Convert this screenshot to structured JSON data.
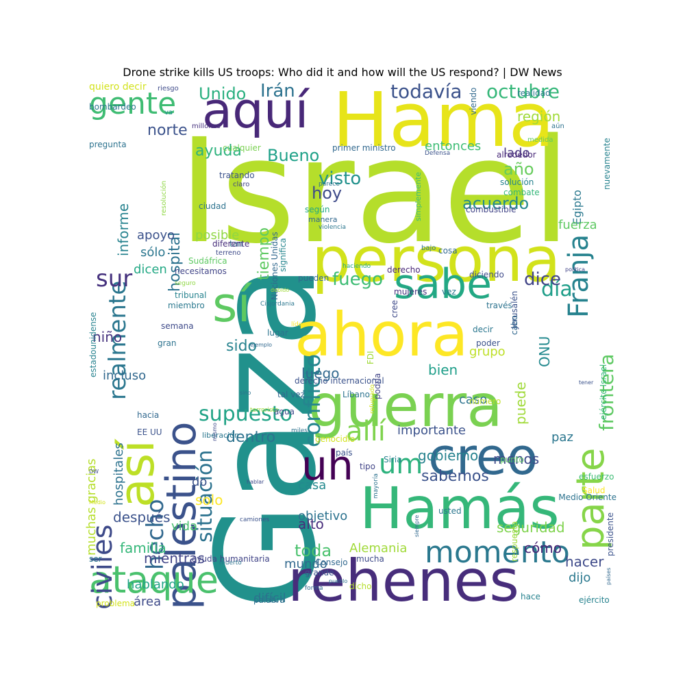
{
  "title": "Drone strike kills US troops: Who did it and how will the US respond? | DW News",
  "words": [
    {
      "t": "Israel",
      "c": "#b5de2b"
    },
    {
      "t": "Gaza",
      "c": "#21918c"
    },
    {
      "t": "Hama",
      "c": "#e7e419"
    },
    {
      "t": "persona",
      "c": "#d2e21b"
    },
    {
      "t": "ahora",
      "c": "#fde725"
    },
    {
      "t": "guerra",
      "c": "#7ad151"
    },
    {
      "t": "Hamás",
      "c": "#35b779"
    },
    {
      "t": "rehenes",
      "c": "#472d7b"
    },
    {
      "t": "creo",
      "c": "#31688e"
    },
    {
      "t": "aquí",
      "c": "#482878"
    },
    {
      "t": "sí",
      "c": "#5ec962"
    },
    {
      "t": "así",
      "c": "#bddf26"
    },
    {
      "t": "palestino",
      "c": "#3b528b"
    },
    {
      "t": "parte",
      "c": "#86d549"
    },
    {
      "t": "sabe",
      "c": "#22a884"
    },
    {
      "t": "ataque",
      "c": "#4ac16d"
    },
    {
      "t": "uh",
      "c": "#440154"
    },
    {
      "t": "momento",
      "c": "#2a788e"
    },
    {
      "t": "gente",
      "c": "#3fbc73"
    },
    {
      "t": "Franja",
      "c": "#26828e"
    },
    {
      "t": "civiles",
      "c": "#3e4a89"
    },
    {
      "t": "um",
      "c": "#2db27d"
    },
    {
      "t": "allí",
      "c": "#7fd34e"
    },
    {
      "t": "realmente",
      "c": "#2a768e"
    },
    {
      "t": "sur",
      "c": "#46327e"
    },
    {
      "t": "hecho",
      "c": "#31688e"
    },
    {
      "t": "conflicto",
      "c": "#25858e"
    },
    {
      "t": "situación",
      "c": "#2c728e"
    },
    {
      "t": "supuesto",
      "c": "#20a386"
    },
    {
      "t": "frontera",
      "c": "#5ec962"
    },
    {
      "t": "todavía",
      "c": "#3b528b"
    },
    {
      "t": "octubre",
      "c": "#35b779"
    },
    {
      "t": "Unido",
      "c": "#29af7f"
    },
    {
      "t": "Irán",
      "c": "#2c728e"
    },
    {
      "t": "día",
      "c": "#1f9e89"
    },
    {
      "t": "dice",
      "c": "#414487"
    },
    {
      "t": "fuego",
      "c": "#3dbc74"
    },
    {
      "t": "visto",
      "c": "#21918c"
    },
    {
      "t": "hoy",
      "c": "#3e4a89"
    },
    {
      "t": "año",
      "c": "#67cc5c"
    },
    {
      "t": "acuerdo",
      "c": "#23898e"
    },
    {
      "t": "Bueno",
      "c": "#1fa188"
    },
    {
      "t": "norte",
      "c": "#3b528b"
    },
    {
      "t": "ayuda",
      "c": "#2db27d"
    },
    {
      "t": "tiempo",
      "c": "#5ec962"
    },
    {
      "t": "hospital",
      "c": "#2c728e"
    },
    {
      "t": "informe",
      "c": "#26828e"
    },
    {
      "t": "región",
      "c": "#a0da39"
    },
    {
      "t": "entonces",
      "c": "#3dbc74"
    },
    {
      "t": "lado",
      "c": "#46337e"
    },
    {
      "t": "Egipto",
      "c": "#2a788e"
    },
    {
      "t": "fuerza",
      "c": "#5ec962"
    },
    {
      "t": "apoyo",
      "c": "#3b528b"
    },
    {
      "t": "sólo",
      "c": "#2a768e"
    },
    {
      "t": "dicen",
      "c": "#22a884"
    },
    {
      "t": "posible",
      "c": "#8fd744"
    },
    {
      "t": "sido",
      "c": "#26828e"
    },
    {
      "t": "luego",
      "c": "#31688e"
    },
    {
      "t": "alto",
      "c": "#472d7b"
    },
    {
      "t": "toda",
      "c": "#4ac16d"
    },
    {
      "t": "solo",
      "c": "#fde725"
    },
    {
      "t": "sabemos",
      "c": "#3b528b"
    },
    {
      "t": "seguridad",
      "c": "#7fd34e"
    },
    {
      "t": "cómo",
      "c": "#482475"
    },
    {
      "t": "hacer",
      "c": "#3e4a89"
    },
    {
      "t": "dijo",
      "c": "#2a788e"
    },
    {
      "t": "ONU",
      "c": "#23898e"
    },
    {
      "t": "puede",
      "c": "#a0da39"
    },
    {
      "t": "grupo",
      "c": "#bddf26"
    },
    {
      "t": "bien",
      "c": "#1f9e89"
    },
    {
      "t": "importante",
      "c": "#3b528b"
    },
    {
      "t": "dentro",
      "c": "#2c728e"
    },
    {
      "t": "gobierno",
      "c": "#26828e"
    },
    {
      "t": "menos",
      "c": "#3e4a89"
    },
    {
      "t": "paz",
      "c": "#2a768e"
    },
    {
      "t": "caso",
      "c": "#2c728e"
    },
    {
      "t": "niño",
      "c": "#46327e"
    },
    {
      "t": "incluso",
      "c": "#31688e"
    },
    {
      "t": "después",
      "c": "#3b528b"
    },
    {
      "t": "familia",
      "c": "#35b779"
    },
    {
      "t": "hablando",
      "c": "#20a386"
    },
    {
      "t": "mientras",
      "c": "#414487"
    },
    {
      "t": "vida",
      "c": "#4ac16d"
    },
    {
      "t": "objetivo",
      "c": "#2c728e"
    },
    {
      "t": "mundo",
      "c": "#31688e"
    },
    {
      "t": "Alemania",
      "c": "#a0da39"
    },
    {
      "t": "difícil",
      "c": "#2c728e"
    },
    {
      "t": "área",
      "c": "#3e4a89"
    },
    {
      "t": "hospitales",
      "c": "#2c728e"
    },
    {
      "t": "muchas gracias",
      "c": "#b5de2b"
    },
    {
      "t": "casa",
      "c": "#23898e"
    },
    {
      "t": "do",
      "c": "#3b528b"
    },
    {
      "t": "estadounidense",
      "c": "#26828e"
    },
    {
      "t": "quiero decir",
      "c": "#d2e21b"
    },
    {
      "t": "riesgo",
      "c": "#3e4a89"
    },
    {
      "t": "bombardeo",
      "c": "#2a768e"
    },
    {
      "t": "va",
      "c": "#21918c"
    },
    {
      "t": "millones",
      "c": "#46327e"
    },
    {
      "t": "pregunta",
      "c": "#2c728e"
    },
    {
      "t": "cualquier",
      "c": "#7ad151"
    },
    {
      "t": "primer ministro",
      "c": "#31688e"
    },
    {
      "t": "Defensa",
      "c": "#3b528b"
    },
    {
      "t": "alrededor",
      "c": "#482878"
    },
    {
      "t": "solución",
      "c": "#26828e"
    },
    {
      "t": "combate",
      "c": "#35b779"
    },
    {
      "t": "realidad",
      "c": "#2a788e"
    },
    {
      "t": "medida",
      "c": "#5ec962"
    },
    {
      "t": "aún",
      "c": "#2c728e"
    },
    {
      "t": "viendo",
      "c": "#31688e"
    },
    {
      "t": "tratando",
      "c": "#3b528b"
    },
    {
      "t": "claro",
      "c": "#414487"
    },
    {
      "t": "ciudad",
      "c": "#2c728e"
    },
    {
      "t": "resolución",
      "c": "#8fd744"
    },
    {
      "t": "según",
      "c": "#22a884"
    },
    {
      "t": "manera",
      "c": "#31688e"
    },
    {
      "t": "violencia",
      "c": "#2a768e"
    },
    {
      "t": "parece",
      "c": "#2c728e"
    },
    {
      "t": "simplemente",
      "c": "#3dbc74"
    },
    {
      "t": "combustible",
      "c": "#414487"
    },
    {
      "t": "nuevamente",
      "c": "#26828e"
    },
    {
      "t": "Naciones Unidas",
      "c": "#31688e"
    },
    {
      "t": "significa",
      "c": "#25858e"
    },
    {
      "t": "tan",
      "c": "#2c728e"
    },
    {
      "t": "diferente",
      "c": "#472d7b"
    },
    {
      "t": "terreno",
      "c": "#3e4a89"
    },
    {
      "t": "Sudáfrica",
      "c": "#5ec962"
    },
    {
      "t": "necesitamos",
      "c": "#414487"
    },
    {
      "t": "seguro",
      "c": "#8fd744"
    },
    {
      "t": "tribunal",
      "c": "#26828e"
    },
    {
      "t": "miembro",
      "c": "#2a788e"
    },
    {
      "t": "semana",
      "c": "#3e4a89"
    },
    {
      "t": "gran",
      "c": "#2c728e"
    },
    {
      "t": "Cisjordania",
      "c": "#2a768e"
    },
    {
      "t": "debido",
      "c": "#a0da39"
    },
    {
      "t": "cree",
      "c": "#3e4a89"
    },
    {
      "t": "haciendo",
      "c": "#22a884"
    },
    {
      "t": "pueden",
      "c": "#31688e"
    },
    {
      "t": "derecho",
      "c": "#482878"
    },
    {
      "t": "mujeres",
      "c": "#46327e"
    },
    {
      "t": "bajo",
      "c": "#2c728e"
    },
    {
      "t": "cosa",
      "c": "#31688e"
    },
    {
      "t": "vez",
      "c": "#2a768e"
    },
    {
      "t": "diciendo",
      "c": "#3e4a89"
    },
    {
      "t": "través",
      "c": "#2c728e"
    },
    {
      "t": "Jerusalén",
      "c": "#3b528b"
    },
    {
      "t": "política",
      "c": "#414487"
    },
    {
      "t": "decir",
      "c": "#2a768e"
    },
    {
      "t": "poder",
      "c": "#3b528b"
    },
    {
      "t": "cabo",
      "c": "#31688e"
    },
    {
      "t": "ejército Israel",
      "c": "#35b779"
    },
    {
      "t": "líderes",
      "c": "#fde725"
    },
    {
      "t": "lugar",
      "c": "#2c728e"
    },
    {
      "t": "ejemplo",
      "c": "#31688e"
    },
    {
      "t": "FDI",
      "c": "#a0da39"
    },
    {
      "t": "derecho internacional",
      "c": "#3b528b"
    },
    {
      "t": "podría",
      "c": "#414487"
    },
    {
      "t": "tal vez",
      "c": "#31688e"
    },
    {
      "t": "refugiado",
      "c": "#d2e21b"
    },
    {
      "t": "terrorista",
      "c": "#a0da39"
    },
    {
      "t": "sino",
      "c": "#2c728e"
    },
    {
      "t": "agua",
      "c": "#3e4a89"
    },
    {
      "t": "Líbano",
      "c": "#2c728e"
    },
    {
      "t": "número",
      "c": "#bddf26"
    },
    {
      "t": "hacia",
      "c": "#31688e"
    },
    {
      "t": "EE UU",
      "c": "#3b528b"
    },
    {
      "t": "liberación",
      "c": "#2a768e"
    },
    {
      "t": "mismo",
      "c": "#3e4a89"
    },
    {
      "t": "miles",
      "c": "#2c728e"
    },
    {
      "t": "genocidio",
      "c": "#d2e21b"
    },
    {
      "t": "país",
      "c": "#3b528b"
    },
    {
      "t": "tipo",
      "c": "#414487"
    },
    {
      "t": "mayoría",
      "c": "#2c728e"
    },
    {
      "t": "Siria",
      "c": "#26828e"
    },
    {
      "t": "punto",
      "c": "#5ec962"
    },
    {
      "t": "esfuerzo",
      "c": "#3dbc74"
    },
    {
      "t": "Salud",
      "c": "#fde725"
    },
    {
      "t": "DW",
      "c": "#3e4a89"
    },
    {
      "t": "hablar",
      "c": "#3e4a89"
    },
    {
      "t": "Medio",
      "c": "#d2e21b"
    },
    {
      "t": "camiones",
      "c": "#3b528b"
    },
    {
      "t": "Medio Oriente",
      "c": "#2c728e"
    },
    {
      "t": "respuesta",
      "c": "#a0da39"
    },
    {
      "t": "usted",
      "c": "#2a768e"
    },
    {
      "t": "siempre",
      "c": "#31688e"
    },
    {
      "t": "presidente",
      "c": "#3b528b"
    },
    {
      "t": "ser",
      "c": "#2a768e"
    },
    {
      "t": "ayuda humanitaria",
      "c": "#414487"
    },
    {
      "t": "muerto",
      "c": "#2c728e"
    },
    {
      "t": "Consejo",
      "c": "#31688e"
    },
    {
      "t": "mucha",
      "c": "#3e4a89"
    },
    {
      "t": "ejército",
      "c": "#26828e"
    },
    {
      "t": "pueblo",
      "c": "#2c728e"
    },
    {
      "t": "grande",
      "c": "#3b528b"
    },
    {
      "t": "forma",
      "c": "#31688e"
    },
    {
      "t": "dicho",
      "c": "#b5de2b"
    },
    {
      "t": "problema",
      "c": "#d2e21b"
    },
    {
      "t": "palabra",
      "c": "#2c728e"
    },
    {
      "t": "hace",
      "c": "#26828e"
    },
    {
      "t": "países",
      "c": "#31688e"
    },
    {
      "t": "tener",
      "c": "#3b528b"
    }
  ]
}
